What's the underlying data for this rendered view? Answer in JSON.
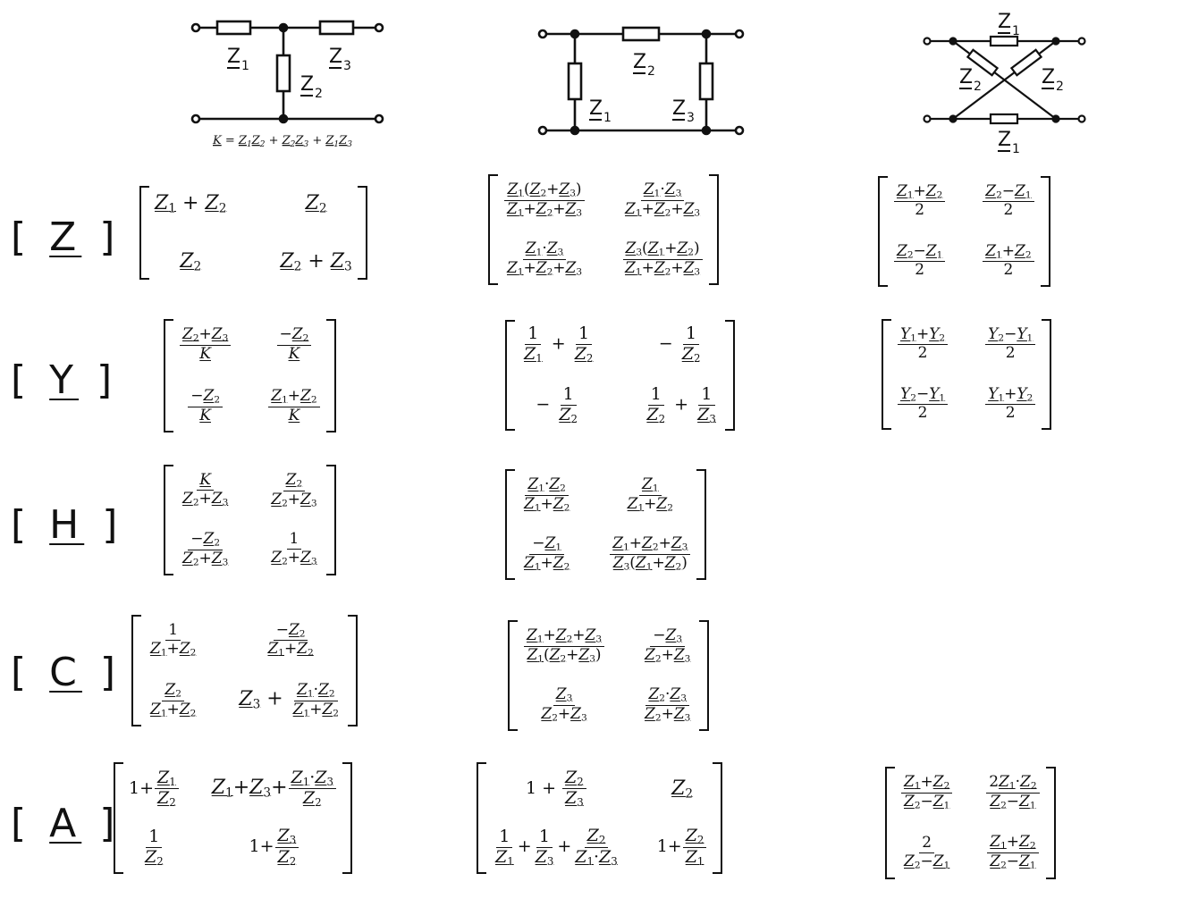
{
  "diagrams": {
    "t_network": {
      "labels": [
        "Z1",
        "Z2",
        "Z3"
      ],
      "k_formula": "K = Z1Z2 + Z2Z3 + Z1Z3"
    },
    "pi_network": {
      "labels": [
        "Z1",
        "Z2",
        "Z3"
      ]
    },
    "lattice_network": {
      "labels": [
        "Z1",
        "Z2",
        "Z2",
        "Z1"
      ]
    }
  },
  "row_labels": [
    {
      "open": "[ ",
      "symbol": "Z",
      "close": " ]"
    },
    {
      "open": "[ ",
      "symbol": "Y",
      "close": " ]"
    },
    {
      "open": "[ ",
      "symbol": "H",
      "close": " ]"
    },
    {
      "open": "[ ",
      "symbol": "C",
      "close": " ]"
    },
    {
      "open": "[ ",
      "symbol": "A",
      "close": " ]"
    }
  ],
  "matrices": {
    "Z": [
      [
        "Z1 + Z2",
        "Z2",
        "Z2",
        "Z2 + Z3"
      ],
      [
        "Z1(Z2+Z3) / (Z1+Z2+Z3)",
        "Z1·Z3 / (Z1+Z2+Z3)",
        "Z1·Z3 / (Z1+Z2+Z3)",
        "Z3(Z1+Z2) / (Z1+Z2+Z3)"
      ],
      [
        "(Z1+Z2)/2",
        "(Z2−Z1)/2",
        "(Z2−Z1)/2",
        "(Z1+Z2)/2"
      ]
    ],
    "Y": [
      [
        "(Z2+Z3)/K",
        "−Z2/K",
        "−Z2/K",
        "(Z1+Z2)/K"
      ],
      [
        "1/Z1 + 1/Z2",
        "−1/Z2",
        "−1/Z2",
        "1/Z2 + 1/Z3"
      ],
      [
        "(Y1+Y2)/2",
        "(Y2−Y1)/2",
        "(Y2−Y1)/2",
        "(Y1+Y2)/2"
      ]
    ],
    "H": [
      [
        "K/(Z2+Z3)",
        "Z2/(Z2+Z3)",
        "−Z2/(Z2+Z3)",
        "1/(Z2+Z3)"
      ],
      [
        "Z1·Z2/(Z1+Z2)",
        "Z1/(Z1+Z2)",
        "−Z1/(Z1+Z2)",
        "(Z1+Z2+Z3)/(Z3(Z1+Z2))"
      ]
    ],
    "C": [
      [
        "1/(Z1+Z2)",
        "−Z2/(Z1+Z2)",
        "Z2/(Z1+Z2)",
        "Z3 + Z1·Z2/(Z1+Z2)"
      ],
      [
        "(Z1+Z2+Z3)/(Z1(Z2+Z3))",
        "−Z3/(Z2+Z3)",
        "Z3/(Z2+Z3)",
        "Z2·Z3/(Z2+Z3)"
      ]
    ],
    "A": [
      [
        "1+Z1/Z2",
        "Z1+Z3+Z1·Z3/Z2",
        "1/Z2",
        "1+Z3/Z2"
      ],
      [
        "1 + Z2/Z3",
        "Z2",
        "1/Z1 + 1/Z3 + Z2/(Z1·Z3)",
        "1+Z2/Z1"
      ],
      [
        "(Z1+Z2)/(Z2−Z1)",
        "2Z1·Z2/(Z2−Z1)",
        "2/(Z2−Z1)",
        "(Z1+Z2)/(Z2−Z1)"
      ]
    ]
  }
}
